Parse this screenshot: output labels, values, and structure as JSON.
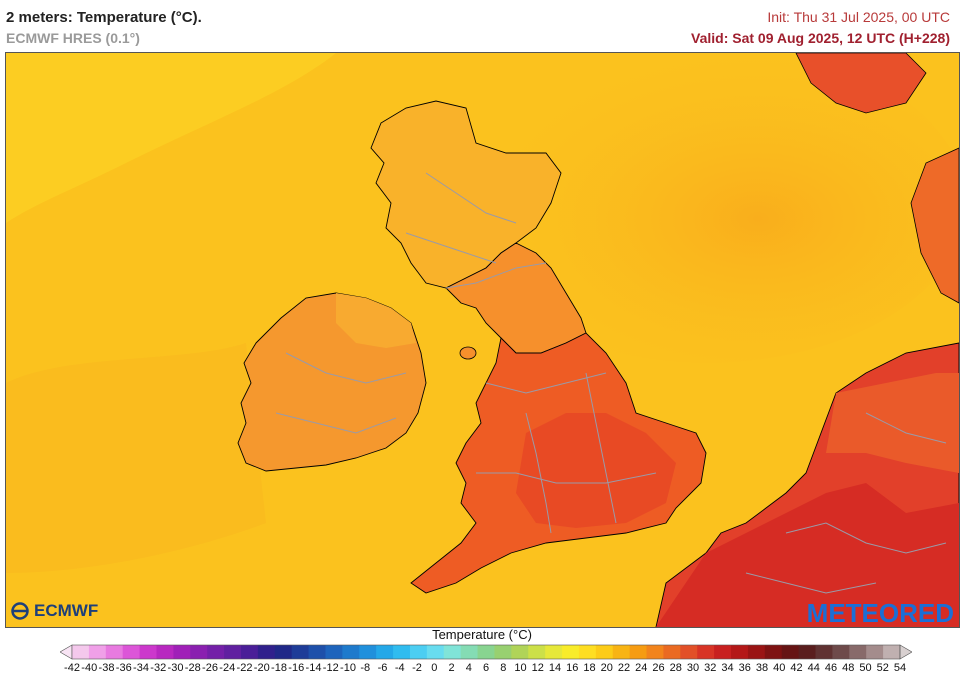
{
  "header": {
    "title": "2 meters: Temperature (°C).",
    "model": "ECMWF HRES (0.1°)",
    "init": "Init: Thu 31 Jul 2025, 00 UTC",
    "valid": "Valid: Sat 09 Aug 2025, 12 UTC (H+228)"
  },
  "logos": {
    "left": "ECMWF",
    "right": "METEORED"
  },
  "legend": {
    "title": "Temperature (°C)",
    "ticks": [
      "-42",
      "-40",
      "-38",
      "-36",
      "-34",
      "-32",
      "-30",
      "-28",
      "-26",
      "-24",
      "-22",
      "-20",
      "-18",
      "-16",
      "-14",
      "-12",
      "-10",
      "-8",
      "-6",
      "-4",
      "-2",
      "0",
      "2",
      "4",
      "6",
      "8",
      "10",
      "12",
      "14",
      "16",
      "18",
      "20",
      "22",
      "24",
      "26",
      "28",
      "30",
      "32",
      "34",
      "36",
      "38",
      "40",
      "42",
      "44",
      "46",
      "48",
      "50",
      "52",
      "54"
    ],
    "colors": [
      "#f4c8ec",
      "#f0a0e8",
      "#e87ae0",
      "#dc55d8",
      "#cc38cc",
      "#b828c0",
      "#a020b8",
      "#8a20b0",
      "#7420a8",
      "#6020a0",
      "#4a1e98",
      "#30208c",
      "#202888",
      "#1e3c98",
      "#1e50aa",
      "#1e64bc",
      "#1e7acc",
      "#2090dc",
      "#24a8e8",
      "#30bcef",
      "#4ccef2",
      "#68dcef",
      "#80e4d8",
      "#84dcb4",
      "#88d490",
      "#98d070",
      "#b0d458",
      "#cce048",
      "#e6e83a",
      "#f8ec2a",
      "#fede22",
      "#fccc18",
      "#f8b414",
      "#f69c12",
      "#f2841c",
      "#ea6a22",
      "#e25028",
      "#d83426",
      "#c82020",
      "#b41818",
      "#9a1414",
      "#7e1212",
      "#661414",
      "#5a1e1e",
      "#603232",
      "#6e4a4a",
      "#886a6a",
      "#a48c8c",
      "#c0b0b0"
    ],
    "arrow_left_color": "#f8e4f4",
    "arrow_right_color": "#d8d0d0"
  },
  "map": {
    "sea_color": "#fbc21e",
    "sea_warm_color": "#f9b41a",
    "land_colors": {
      "scotland": "#f9b22a",
      "ireland": "#f5982e",
      "england_north": "#f6902c",
      "england_south": "#ee5c24",
      "continent": "#e2402a"
    },
    "coastline_color": "#000000",
    "border_color": "#9a9aa8"
  }
}
